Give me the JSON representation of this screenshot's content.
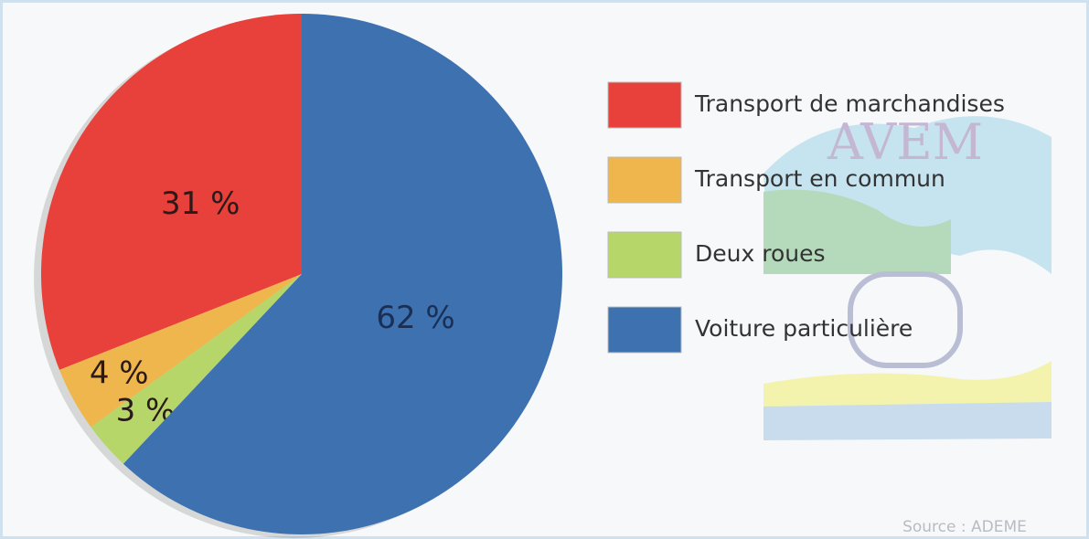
{
  "chart_data": {
    "type": "pie",
    "categories": [
      "Transport de marchandises",
      "Transport en commun",
      "Deux roues",
      "Voiture particulière"
    ],
    "values": [
      31,
      4,
      3,
      62
    ],
    "value_labels": [
      "31 %",
      "4 %",
      "3 %",
      "62 %"
    ],
    "colors": [
      "#e8403a",
      "#eeb64c",
      "#b6d66a",
      "#3e71b0"
    ],
    "legend": "right",
    "source": "Source : ADEME",
    "logo": "AVEM"
  }
}
